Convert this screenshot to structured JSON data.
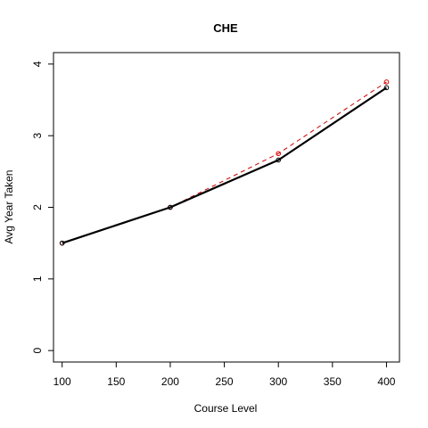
{
  "chart_data": {
    "type": "line",
    "title": "CHE",
    "xlabel": "Course Level",
    "ylabel": "Avg Year Taken",
    "xlim": [
      92,
      412
    ],
    "ylim": [
      -0.16,
      4.16
    ],
    "x_ticks": [
      100,
      150,
      200,
      250,
      300,
      350,
      400
    ],
    "y_ticks": [
      0,
      1,
      2,
      3,
      4
    ],
    "grid": false,
    "legend": "none",
    "series": [
      {
        "values": [
          1.5,
          2.0,
          2.66,
          3.67
        ],
        "x": [
          100,
          200,
          300,
          400
        ],
        "color": "#000000",
        "line_style": "solid",
        "marker_color": "#000000"
      },
      {
        "values": [
          1.5,
          2.0,
          2.75,
          3.75
        ],
        "x": [
          100,
          200,
          300,
          400
        ],
        "color": "#cc0000",
        "line_style": "dashed",
        "marker_color": "#dd0000"
      }
    ]
  }
}
